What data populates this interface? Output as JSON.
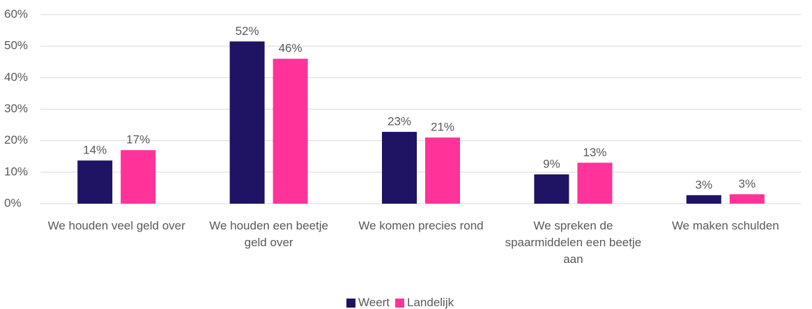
{
  "chart_data": {
    "type": "bar",
    "categories": [
      "We houden veel geld over",
      "We houden een beetje geld over",
      "We komen precies rond",
      "We spreken de spaarmiddelen een beetje aan",
      "We maken schulden"
    ],
    "series": [
      {
        "name": "Weert",
        "color": "#1f1463",
        "values": [
          13.7,
          51.5,
          22.8,
          9.3,
          2.7
        ],
        "value_labels": [
          "14%",
          "52%",
          "23%",
          "9%",
          "3%"
        ]
      },
      {
        "name": "Landelijk",
        "color": "#ff3399",
        "values": [
          17,
          46,
          21,
          13,
          3
        ],
        "value_labels": [
          "17%",
          "46%",
          "21%",
          "13%",
          "3%"
        ]
      }
    ],
    "ylim": [
      0,
      60
    ],
    "yticks": [
      {
        "value": 0,
        "label": "0%"
      },
      {
        "value": 10,
        "label": "10%"
      },
      {
        "value": 20,
        "label": "20%"
      },
      {
        "value": 30,
        "label": "30%"
      },
      {
        "value": 40,
        "label": "40%"
      },
      {
        "value": 50,
        "label": "50%"
      },
      {
        "value": 60,
        "label": "60%"
      }
    ],
    "grid": true,
    "legend": "bottom"
  }
}
